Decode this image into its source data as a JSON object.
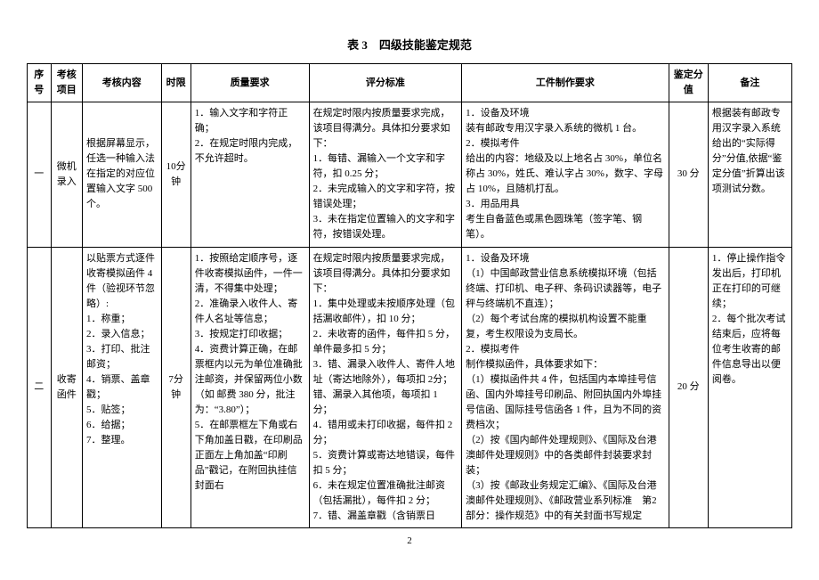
{
  "title": "表 3　四级技能鉴定规范",
  "page_number": "2",
  "headers": {
    "seq": "序号",
    "item": "考核项目",
    "content": "考核内容",
    "time": "时限",
    "quality": "质量要求",
    "criteria": "评分标准",
    "work": "工件制作要求",
    "score": "鉴定分值",
    "remark": "备注"
  },
  "rows": [
    {
      "seq": "一",
      "item": "微机录入",
      "content": "根据屏幕显示，任选一种输入法在指定的对应位置输入文字 500个。",
      "time": "10分钟",
      "quality": "1．输入文字和字符正确；\n2．在规定时限内完成，不允许超时。",
      "criteria": "在规定时限内按质量要求完成，该项目得满分。具体扣分要求如下：\n1．每错、漏输入一个文字和字符，扣 0.25 分；\n2．未完成输入的文字和字符，按错误处理；\n3．未在指定位置输入的文字和字符，按错误处理。",
      "work": "1．设备及环境\n装有邮政专用汉字录入系统的微机 1 台。\n2．模拟考件\n给出的内容：地级及以上地名占 30%，单位名称占 30%，姓氏、难认字占 30%，数字、字母占 10%，且随机打乱。\n3．用品用具\n考生自备蓝色或黑色圆珠笔（签字笔、钢笔）。",
      "score": "30 分",
      "remark": "根据装有邮政专用汉字录入系统给出的“实际得分”分值,依据“鉴定分值”折算出该项测试分数。"
    },
    {
      "seq": "二",
      "item": "收寄函件",
      "content": "以贴票方式逐件收寄模拟函件 4 件（验视环节忽略）:\n1．称重；\n2．录入信息；\n3．打印、批注邮资；\n4．销票、盖章戳；\n5．贴签；\n6．给据；\n7．整理。",
      "time": "7分钟",
      "quality": "1．按照给定顺序号，逐件收寄模拟函件，一件一清，不得集中处理；\n2．准确录入收件人、寄件人名址等信息；\n3．按规定打印收据；\n4．资费计算正确，在邮票框内以元为单位准确批注邮资，并保留两位小数（如 邮费 380 分，批注为：“3.80”）；\n5．在邮票框左下角或右下角加盖日戳，在印刷品正面左上角加盖“印刷品”戳记，在附回执挂信封面右",
      "criteria": "在规定时限内按质量要求完成，该项目得满分。具体扣分要求如下：\n1．集中处理或未按顺序处理（包括漏收邮件），扣 10 分；\n2．未收寄的函件，每件扣 5 分，单件最多扣 5 分；\n3．错、漏录入收件人、寄件人地址（寄达地除外），每项扣 2分；错、漏录入其他项，每项扣 1 分；\n4．错用或未打印收据，每件扣 2 分；\n5．资费计算或寄达地错误，每件扣 5 分；\n6．未在规定位置准确批注邮资（包括漏批），每件扣 2 分；\n7．错、漏盖章戳（含销票日",
      "work": "1．设备及环境\n（1）中国邮政营业信息系统模拟环境（包括终端、打印机、电子秤、条码识读器等，电子秤与终端机不直连）；\n（2）每个考试台席的模拟机构设置不能重复，考生权限设为支局长。\n2．模拟考件\n制作模拟函件，具体要求如下：\n（1）模拟函件共 4 件，包括国内本埠挂号信函、国内外埠挂号印刷品、附回执国内外埠挂号信函、国际挂号信函各 1 件，且为不同的资费档次；\n（2）按《国内邮件处理规则》、《国际及台港澳邮件处理规则》中的各类邮件封装要求封装；\n（3）按《邮政业务规定汇编》、《国际及台港澳邮件处理规则》、《邮政营业系列标准　第2 部分：操作规范》中的有关封面书写规定",
      "score": "20 分",
      "remark": "1．停止操作指令发出后，打印机正在打印的可继续；\n2．每个批次考试结束后，应将每位考生收寄的邮件信息导出以便阅卷。"
    }
  ]
}
